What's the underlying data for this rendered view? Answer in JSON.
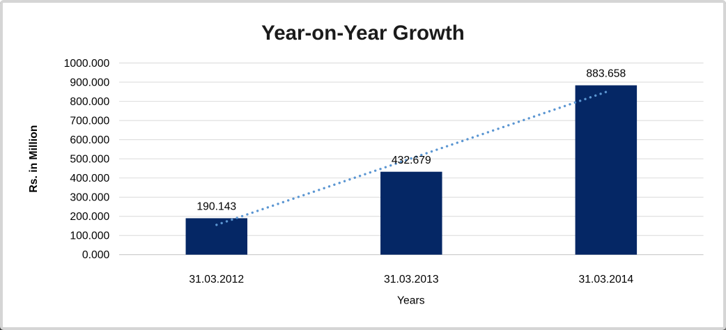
{
  "chart_data": {
    "type": "bar",
    "title": "Year-on-Year Growth",
    "xlabel": "Years",
    "ylabel": "Rs. in Million",
    "categories": [
      "31.03.2012",
      "31.03.2013",
      "31.03.2014"
    ],
    "values": [
      190.143,
      432.679,
      883.658
    ],
    "value_labels": [
      "190.143",
      "432.679",
      "883.658"
    ],
    "ylim": [
      0,
      1000
    ],
    "ytick_step": 100,
    "ytick_labels": [
      "0.000",
      "100.000",
      "200.000",
      "300.000",
      "400.000",
      "500.000",
      "600.000",
      "700.000",
      "800.000",
      "900.000",
      "1000.000"
    ],
    "grid": "horizontal",
    "legend_position": "none",
    "trendline": {
      "type": "linear",
      "style": "dotted",
      "start_value": 155.4,
      "end_value": 848.9
    },
    "colors": {
      "bar": "#052765",
      "trendline": "#5b96d2",
      "gridline": "#d9d9d9",
      "baseline": "#c0c0c0",
      "text": "#000000",
      "title_text": "#1b1b1b",
      "frame_border": "#d5d5d5",
      "background": "#ffffff"
    }
  }
}
